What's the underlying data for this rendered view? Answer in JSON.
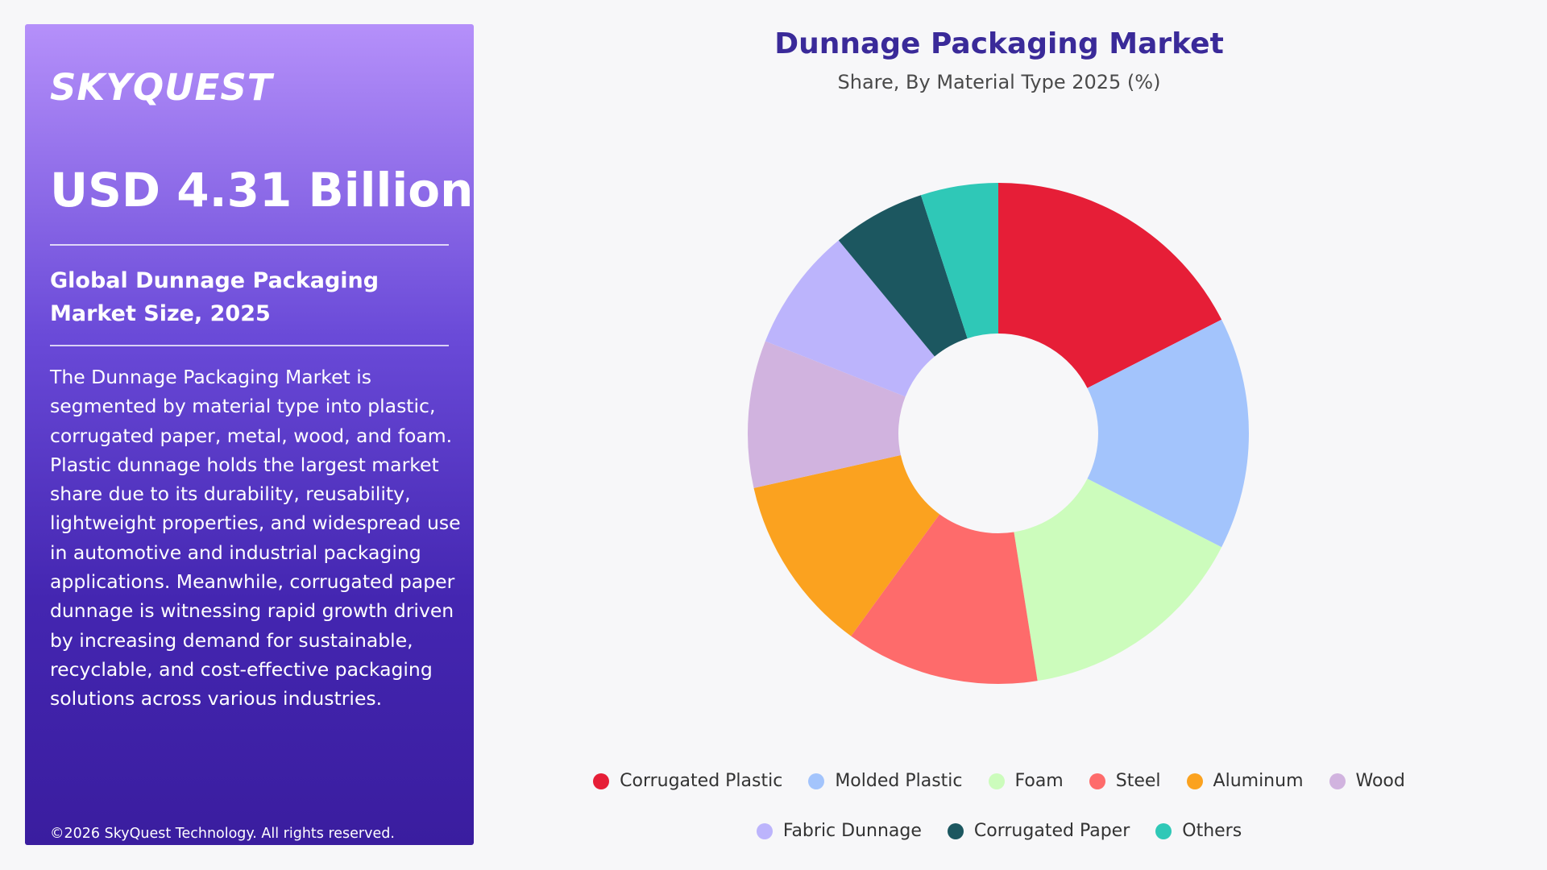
{
  "brand": {
    "logo_text": "SKYQUEST"
  },
  "left_panel": {
    "market_value": "USD 4.31 Billion",
    "size_label": "Global Dunnage Packaging Market Size, 2025",
    "description": "The Dunnage Packaging Market is segmented by material type into plastic, corrugated paper, metal, wood, and foam. Plastic dunnage holds the largest market share due to its durability, reusability, lightweight properties, and widespread use in automotive and industrial packaging applications. Meanwhile, corrugated paper dunnage is witnessing rapid growth driven by increasing demand for sustainable, recyclable, and cost-effective packaging solutions across various industries.",
    "copyright": "©2026 SkyQuest Technology. All rights reserved."
  },
  "chart_data": {
    "type": "pie",
    "title": "Dunnage Packaging Market",
    "subtitle": "Share, By Material Type 2025 (%)",
    "categories": [
      "Corrugated Plastic",
      "Molded Plastic",
      "Foam",
      "Steel",
      "Aluminum",
      "Wood",
      "Fabric Dunnage",
      "Corrugated Paper",
      "Others"
    ],
    "values": [
      17.5,
      15,
      15,
      12.5,
      11.5,
      9.5,
      8,
      6,
      5
    ],
    "colors": [
      "#e61e37",
      "#a3c4fc",
      "#ccfcbc",
      "#fe6b6b",
      "#fba21f",
      "#d1b3df",
      "#bcb4fc",
      "#1c5760",
      "#2fc8b7"
    ],
    "donut": true,
    "legend_position": "bottom"
  }
}
